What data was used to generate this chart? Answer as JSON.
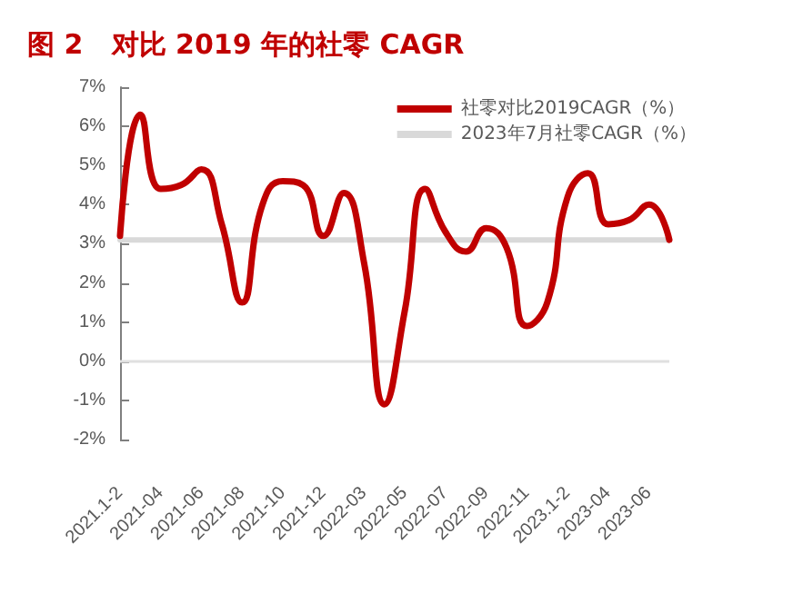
{
  "chart_data": {
    "type": "line",
    "title": "图 2   对比 2019 年的社零 CAGR",
    "categories": [
      "2021.1-2",
      null,
      "2021-04",
      null,
      "2021-06",
      null,
      "2021-08",
      null,
      "2021-10",
      null,
      "2021-12",
      null,
      "2022-03",
      null,
      "2022-05",
      null,
      "2022-07",
      null,
      "2022-09",
      null,
      "2022-11",
      null,
      "2023.1-2",
      null,
      "2023-04",
      null,
      "2023-06",
      null
    ],
    "series": [
      {
        "name": "社零对比2019CAGR（%）",
        "color": "#c00000",
        "values": [
          3.2,
          6.3,
          4.4,
          4.5,
          4.9,
          3.5,
          1.5,
          4.0,
          4.6,
          4.5,
          3.2,
          4.3,
          2.5,
          -1.1,
          1.3,
          4.4,
          3.3,
          2.8,
          3.4,
          2.9,
          0.9,
          1.5,
          4.2,
          4.8,
          3.5,
          3.6,
          4.0,
          3.1
        ]
      },
      {
        "name": "2023年7月社零CAGR（%）",
        "color": "#d9d9d9",
        "values": [
          3.1,
          3.1,
          3.1,
          3.1,
          3.1,
          3.1,
          3.1,
          3.1,
          3.1,
          3.1,
          3.1,
          3.1,
          3.1,
          3.1,
          3.1,
          3.1,
          3.1,
          3.1,
          3.1,
          3.1,
          3.1,
          3.1,
          3.1,
          3.1,
          3.1,
          3.1,
          3.1,
          3.1
        ]
      }
    ],
    "ylim": [
      -2,
      7
    ],
    "yticks": [
      {
        "value": -2,
        "label": "-2%"
      },
      {
        "value": -1,
        "label": "-1%"
      },
      {
        "value": 0,
        "label": "0%"
      },
      {
        "value": 1,
        "label": "1%"
      },
      {
        "value": 2,
        "label": "2%"
      },
      {
        "value": 3,
        "label": "3%"
      },
      {
        "value": 4,
        "label": "4%"
      },
      {
        "value": 5,
        "label": "5%"
      },
      {
        "value": 6,
        "label": "6%"
      },
      {
        "value": 7,
        "label": "7%"
      }
    ],
    "grid": false,
    "legend": "top right",
    "marker": "none",
    "line_style": "solid"
  }
}
